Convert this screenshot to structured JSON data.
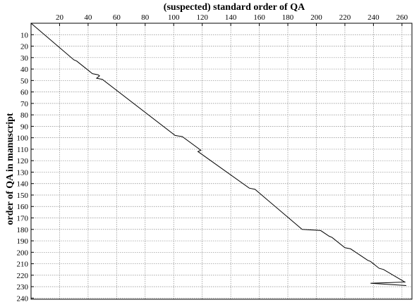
{
  "chart_data": {
    "type": "line",
    "title": "(suspected) standard order of QA",
    "xlabel": "(suspected) standard order of QA",
    "ylabel": "order of QA in manuscript",
    "xlim": [
      0,
      267
    ],
    "ylim": [
      0,
      241
    ],
    "x_axis_position": "top",
    "y_axis_inverted": true,
    "grid": true,
    "grid_style": "dotted",
    "x_ticks": [
      20,
      40,
      60,
      80,
      100,
      120,
      140,
      160,
      180,
      200,
      220,
      240,
      260
    ],
    "x_tick_labels": [
      "20",
      "40",
      "60",
      "80",
      "100",
      "120",
      "140",
      "160",
      "180",
      "200",
      "220",
      "240",
      "260"
    ],
    "y_ticks": [
      10,
      20,
      30,
      40,
      50,
      60,
      70,
      80,
      90,
      100,
      110,
      120,
      130,
      140,
      150,
      160,
      170,
      180,
      190,
      200,
      210,
      220,
      230,
      240
    ],
    "y_tick_labels": [
      "10",
      "20",
      "30",
      "40",
      "50",
      "60",
      "70",
      "80",
      "90",
      "100",
      "110",
      "120",
      "130",
      "140",
      "150",
      "160",
      "170",
      "180",
      "190",
      "200",
      "210",
      "220",
      "230",
      "240"
    ],
    "line_color": "#000000",
    "series": [
      {
        "x": [
          0,
          30,
          32,
          43,
          47,
          48,
          46,
          50,
          101,
          106,
          118,
          119,
          117,
          153,
          157,
          190,
          203,
          209,
          211,
          220,
          224,
          236,
          238,
          244,
          247,
          262,
          238,
          263,
          262
        ],
        "y": [
          0,
          32,
          33,
          44,
          45,
          46,
          48,
          49,
          98,
          99,
          110,
          111,
          112,
          144,
          145,
          180,
          181,
          186,
          187,
          196,
          197,
          207,
          208,
          214,
          215,
          226,
          227,
          229,
          229
        ]
      }
    ]
  }
}
